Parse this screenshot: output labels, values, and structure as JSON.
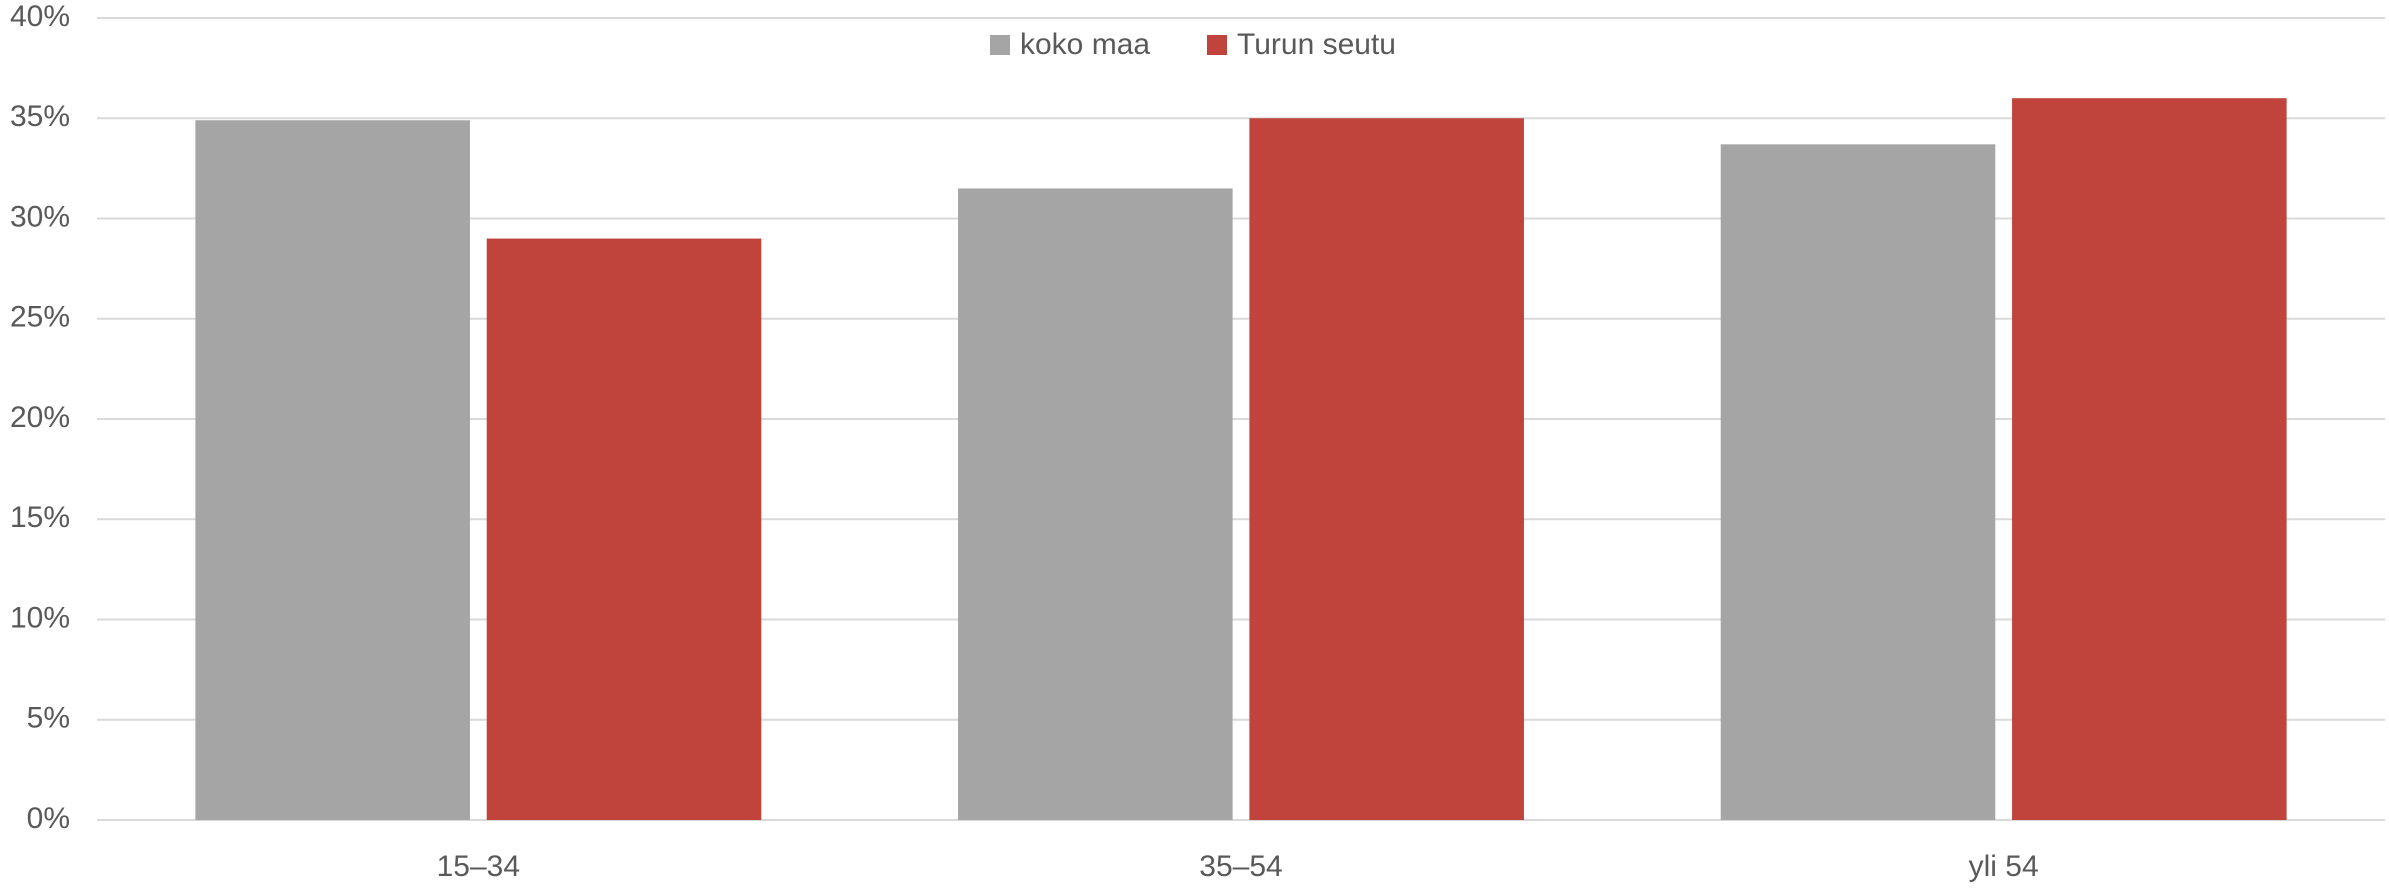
{
  "chart_data": {
    "type": "bar",
    "categories": [
      "15–34",
      "35–54",
      "yli 54"
    ],
    "series": [
      {
        "name": "koko maa",
        "color": "#a5a5a5",
        "values": [
          34.9,
          31.5,
          33.7
        ]
      },
      {
        "name": "Turun seutu",
        "color": "#c0443b",
        "values": [
          29.0,
          35.0,
          36.0
        ]
      }
    ],
    "ylim": [
      0,
      40
    ],
    "yticks": [
      {
        "value": 0,
        "label": "0%"
      },
      {
        "value": 5,
        "label": "5%"
      },
      {
        "value": 10,
        "label": "10%"
      },
      {
        "value": 15,
        "label": "15%"
      },
      {
        "value": 20,
        "label": "20%"
      },
      {
        "value": 25,
        "label": "25%"
      },
      {
        "value": 30,
        "label": "30%"
      },
      {
        "value": 35,
        "label": "35%"
      },
      {
        "value": 40,
        "label": "40%"
      }
    ],
    "grid": true,
    "legend": "top"
  }
}
